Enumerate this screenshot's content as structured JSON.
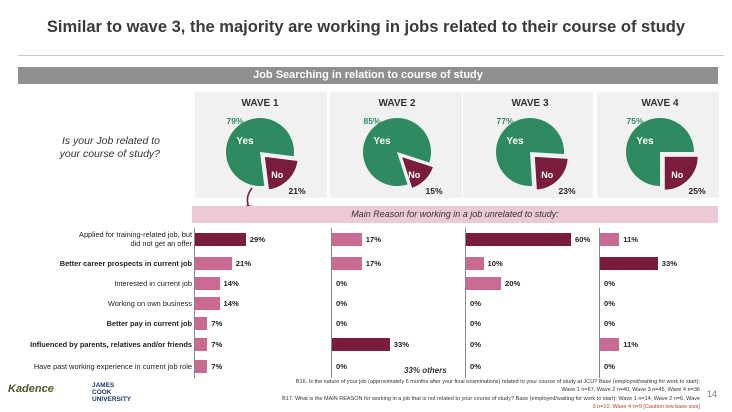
{
  "title": "Similar to wave 3, the majority are working in jobs related to their course of study",
  "section_bar": "Job Searching in relation to course of study",
  "question": "Is your Job related to your course of study?",
  "main_reason": "Main Reason for working in a job unrelated to study:",
  "others_note": "33% others",
  "page_number": "14",
  "logos": {
    "left": "Kadence",
    "right": "JAMES COOK UNIVERSITY"
  },
  "footnote": {
    "b16": "B16. Is the nature of your job (approximately 6 months after your final examinations) related to your course of study at JCU? Base (employed/waiting for work to start):",
    "b16_base": "Wave 1 n=67, Wave 2 n=40, Wave 3 n=45, Wave 4 n=36",
    "b17": "B17. What is the MAIN REASON for working in a job that is not related to your course of study? Base (employed/waiting for work to start): Wave 1 n=14, Wave 2 n=6, Wave",
    "b17_base": "3 n=10, Wave 4 n=9 [Caution low base size]"
  },
  "colors": {
    "yes": "#2e8b61",
    "no": "#7a1d3d",
    "reason_bar": "#c96a93",
    "reason_bar_dark": "#7a1d3d"
  },
  "chart_data": [
    {
      "type": "pie",
      "waves": [
        {
          "label": "WAVE 1",
          "yes": 79,
          "no": 21
        },
        {
          "label": "WAVE 2",
          "yes": 85,
          "no": 15
        },
        {
          "label": "WAVE 3",
          "yes": 77,
          "no": 23
        },
        {
          "label": "WAVE 4",
          "yes": 75,
          "no": 25
        }
      ],
      "yes_label": "Yes",
      "no_label": "No"
    },
    {
      "type": "bar",
      "orientation": "horizontal",
      "categories": [
        "Applied for training-related job, but did not get an offer",
        "Better career prospects in current job",
        "Interested in current job",
        "Working on own business",
        "Better pay in current job",
        "Influenced by parents, relatives and/or friends",
        "Have past working experience in current job role"
      ],
      "series": [
        {
          "name": "WAVE 1",
          "values": [
            29,
            21,
            14,
            14,
            7,
            7,
            7
          ],
          "highlight": 0
        },
        {
          "name": "WAVE 2",
          "values": [
            17,
            17,
            0,
            0,
            0,
            33,
            0
          ],
          "highlight": 5
        },
        {
          "name": "WAVE 3",
          "values": [
            60,
            10,
            20,
            0,
            0,
            0,
            0
          ],
          "highlight": 0
        },
        {
          "name": "WAVE 4",
          "values": [
            11,
            33,
            0,
            0,
            0,
            11,
            0
          ],
          "highlight": 1
        }
      ]
    }
  ]
}
